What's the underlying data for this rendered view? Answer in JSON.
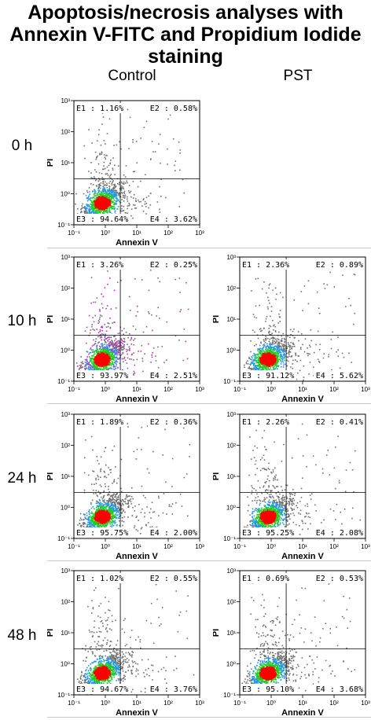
{
  "title_lines": [
    "Apoptosis/necrosis analyses with",
    "Annexin V-FITC and Propidium Iodide",
    "staining"
  ],
  "columns": [
    "Control",
    "PST"
  ],
  "rows": [
    "0 h",
    "10 h",
    "24 h",
    "48 h"
  ],
  "chart_data": {
    "type": "scatter",
    "xlabel": "Annexin V",
    "ylabel": "PI",
    "xscale": "log",
    "yscale": "log",
    "xticks": [
      "10⁻¹",
      "10⁰",
      "10¹",
      "10²",
      "10³"
    ],
    "yticks": [
      "10⁻¹",
      "10⁰",
      "10¹",
      "10²",
      "10³"
    ],
    "xlim": [
      0.1,
      1000
    ],
    "ylim": [
      0.1,
      1000
    ],
    "quadrant_gate": {
      "x": 3,
      "y": 3
    },
    "panels": [
      {
        "row": "0 h",
        "column": "Control",
        "quadrants": {
          "E1": "E1 : 1.16%",
          "E2": "E2 : 0.58%",
          "E3": "E3 : 94.64%",
          "E4": "E4 : 3.62%"
        }
      },
      {
        "row": "10 h",
        "column": "Control",
        "quadrants": {
          "E1": "E1 : 3.26%",
          "E2": "E2 : 0.25%",
          "E3": "E3 : 93.97%",
          "E4": "E4 : 2.51%"
        }
      },
      {
        "row": "10 h",
        "column": "PST",
        "quadrants": {
          "E1": "E1 : 2.36%",
          "E2": "E2 : 0.89%",
          "E3": "E3 : 91.12%",
          "E4": "E4 : 5.62%"
        }
      },
      {
        "row": "24 h",
        "column": "Control",
        "quadrants": {
          "E1": "E1 : 1.89%",
          "E2": "E2 : 0.36%",
          "E3": "E3 : 95.75%",
          "E4": "E4 : 2.00%"
        }
      },
      {
        "row": "24 h",
        "column": "PST",
        "quadrants": {
          "E1": "E1 : 2.26%",
          "E2": "E2 : 0.41%",
          "E3": "E3 : 95.25%",
          "E4": "E4 : 2.08%"
        }
      },
      {
        "row": "48 h",
        "column": "Control",
        "quadrants": {
          "E1": "E1 : 1.02%",
          "E2": "E2 : 0.55%",
          "E3": "E3 : 94.67%",
          "E4": "E4 : 3.76%"
        }
      },
      {
        "row": "48 h",
        "column": "PST",
        "quadrants": {
          "E1": "E1 : 0.69%",
          "E2": "E2 : 0.53%",
          "E3": "E3 : 95.10%",
          "E4": "E4 : 3.68%"
        }
      }
    ]
  },
  "colors": {
    "core": "#ff0000",
    "mid": "#22cc22",
    "outer": "#2299dd",
    "sparse": "#707070",
    "debris": "#cc22cc"
  }
}
